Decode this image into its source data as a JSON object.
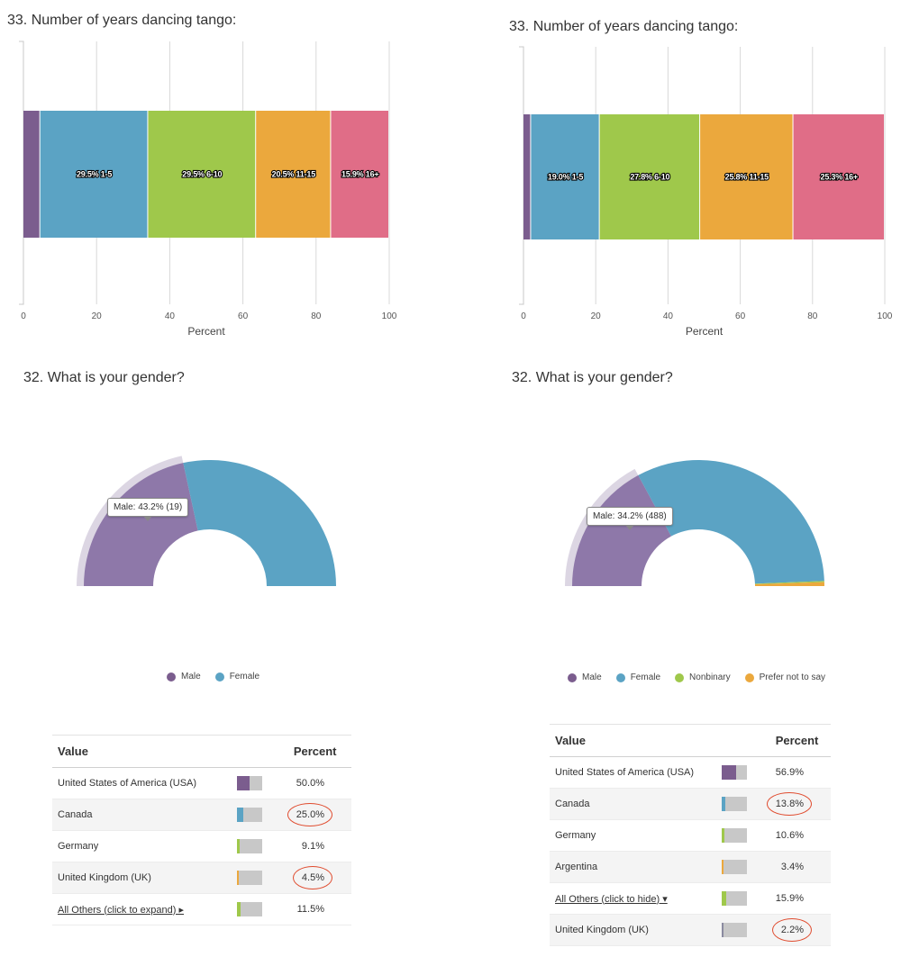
{
  "panels": [
    {
      "chart_data": {
        "type": "bar",
        "orientation": "horizontal-stacked",
        "title": "33. Number of years dancing tango:",
        "xlabel": "Percent",
        "xlim": [
          0,
          100
        ],
        "ticks": [
          "0",
          "20",
          "40",
          "60",
          "80",
          "100"
        ],
        "grid": true,
        "series": [
          {
            "label": "",
            "value": 4.6,
            "color": "#7b5d8e"
          },
          {
            "label": "29.5% 1-5",
            "value": 29.5,
            "color": "#5ba3c4"
          },
          {
            "label": "29.5% 6-10",
            "value": 29.5,
            "color": "#9fc84b"
          },
          {
            "label": "20.5% 11-15",
            "value": 20.5,
            "color": "#eba83d"
          },
          {
            "label": "15.9% 16+",
            "value": 15.9,
            "color": "#e06d87"
          }
        ]
      },
      "gender": {
        "title": "32. What is your gender?",
        "chart_data": {
          "type": "pie",
          "style": "semi-donut",
          "slices": [
            {
              "name": "Male",
              "value": 43.2,
              "color": "#8e78a9"
            },
            {
              "name": "Female",
              "value": 56.8,
              "color": "#5ba3c4"
            }
          ],
          "highlight": {
            "name": "Male",
            "value": 43.2
          }
        },
        "tooltip": "Male: 43.2% (19)",
        "legend": [
          {
            "name": "Male",
            "color": "#7b5d8e"
          },
          {
            "name": "Female",
            "color": "#5ba3c4"
          }
        ]
      },
      "table": {
        "col_value": "Value",
        "col_percent": "Percent",
        "rows": [
          {
            "value": "United States of America (USA)",
            "percent": "50.0%",
            "fill": 0.5,
            "color": "#7b5d8e",
            "link": false,
            "circled": false
          },
          {
            "value": "Canada",
            "percent": "25.0%",
            "fill": 0.25,
            "color": "#5ba3c4",
            "link": false,
            "circled": true
          },
          {
            "value": "Germany",
            "percent": "9.1%",
            "fill": 0.091,
            "color": "#9fc84b",
            "link": false,
            "circled": false
          },
          {
            "value": "United Kingdom (UK)",
            "percent": "4.5%",
            "fill": 0.045,
            "color": "#eba83d",
            "link": false,
            "circled": true
          },
          {
            "value": "All Others (click to expand) ▸",
            "percent": "11.5%",
            "fill": 0.115,
            "color": "#9fc84b",
            "link": true,
            "circled": false
          }
        ]
      }
    },
    {
      "chart_data": {
        "type": "bar",
        "orientation": "horizontal-stacked",
        "title": "33. Number of years dancing tango:",
        "xlabel": "Percent",
        "xlim": [
          0,
          100
        ],
        "ticks": [
          "0",
          "20",
          "40",
          "60",
          "80",
          "100"
        ],
        "grid": true,
        "series": [
          {
            "label": "",
            "value": 2.1,
            "color": "#7b5d8e"
          },
          {
            "label": "19.0% 1-5",
            "value": 19.0,
            "color": "#5ba3c4"
          },
          {
            "label": "27.8% 6-10",
            "value": 27.8,
            "color": "#9fc84b"
          },
          {
            "label": "25.8% 11-15",
            "value": 25.8,
            "color": "#eba83d"
          },
          {
            "label": "25.3% 16+",
            "value": 25.3,
            "color": "#e06d87"
          }
        ]
      },
      "gender": {
        "title": "32. What is your gender?",
        "chart_data": {
          "type": "pie",
          "style": "semi-donut",
          "slices": [
            {
              "name": "Male",
              "value": 34.2,
              "color": "#8e78a9"
            },
            {
              "name": "Female",
              "value": 64.5,
              "color": "#5ba3c4"
            },
            {
              "name": "Nonbinary",
              "value": 0.3,
              "color": "#9fc84b"
            },
            {
              "name": "Prefer not to say",
              "value": 1.0,
              "color": "#eba83d"
            }
          ],
          "highlight": {
            "name": "Male",
            "value": 34.2
          }
        },
        "tooltip": "Male: 34.2% (488)",
        "legend": [
          {
            "name": "Male",
            "color": "#7b5d8e"
          },
          {
            "name": "Female",
            "color": "#5ba3c4"
          },
          {
            "name": "Nonbinary",
            "color": "#9fc84b"
          },
          {
            "name": "Prefer not to say",
            "color": "#eba83d"
          }
        ]
      },
      "table": {
        "col_value": "Value",
        "col_percent": "Percent",
        "rows": [
          {
            "value": "United States of America (USA)",
            "percent": "56.9%",
            "fill": 0.569,
            "color": "#7b5d8e",
            "link": false,
            "circled": false
          },
          {
            "value": "Canada",
            "percent": "13.8%",
            "fill": 0.138,
            "color": "#5ba3c4",
            "link": false,
            "circled": true
          },
          {
            "value": "Germany",
            "percent": "10.6%",
            "fill": 0.106,
            "color": "#9fc84b",
            "link": false,
            "circled": false
          },
          {
            "value": "Argentina",
            "percent": "3.4%",
            "fill": 0.034,
            "color": "#eba83d",
            "link": false,
            "circled": false
          },
          {
            "value": "All Others (click to hide) ▾",
            "percent": "15.9%",
            "fill": 0.159,
            "color": "#9fc84b",
            "link": true,
            "circled": false
          },
          {
            "value": "United Kingdom (UK)",
            "percent": "2.2%",
            "fill": 0.022,
            "color": "#8a8aa0",
            "link": false,
            "circled": true
          }
        ]
      }
    }
  ]
}
